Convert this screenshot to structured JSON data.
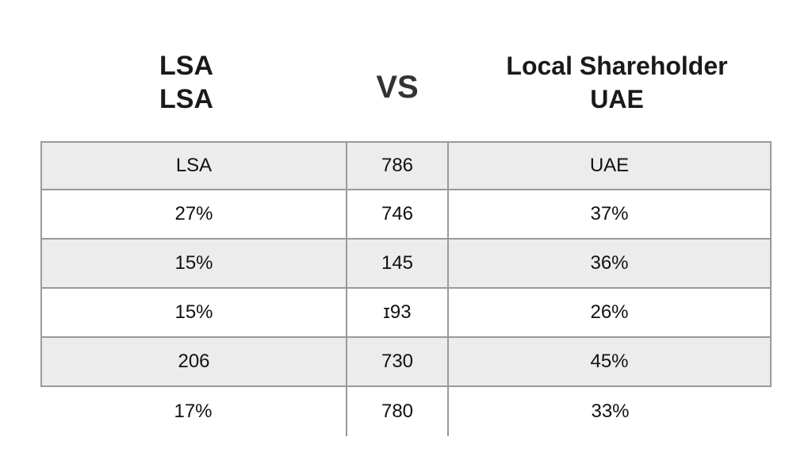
{
  "header": {
    "left_line1": "LSA",
    "left_line2": "LSA",
    "vs": "VS",
    "right_line1": "Local Shareholder",
    "right_line2": "UAE"
  },
  "table": {
    "rows": [
      [
        "LSA",
        "786",
        "UAE"
      ],
      [
        "27%",
        "746",
        "37%"
      ],
      [
        "15%",
        "145",
        "36%"
      ],
      [
        "15%",
        "ɪ93",
        "26%"
      ],
      [
        "206",
        "730",
        "45%"
      ],
      [
        "17%",
        "780",
        "33%"
      ]
    ]
  },
  "colors": {
    "shaded_row": "#ececec",
    "border": "#9a9a9a",
    "text": "#111111"
  }
}
